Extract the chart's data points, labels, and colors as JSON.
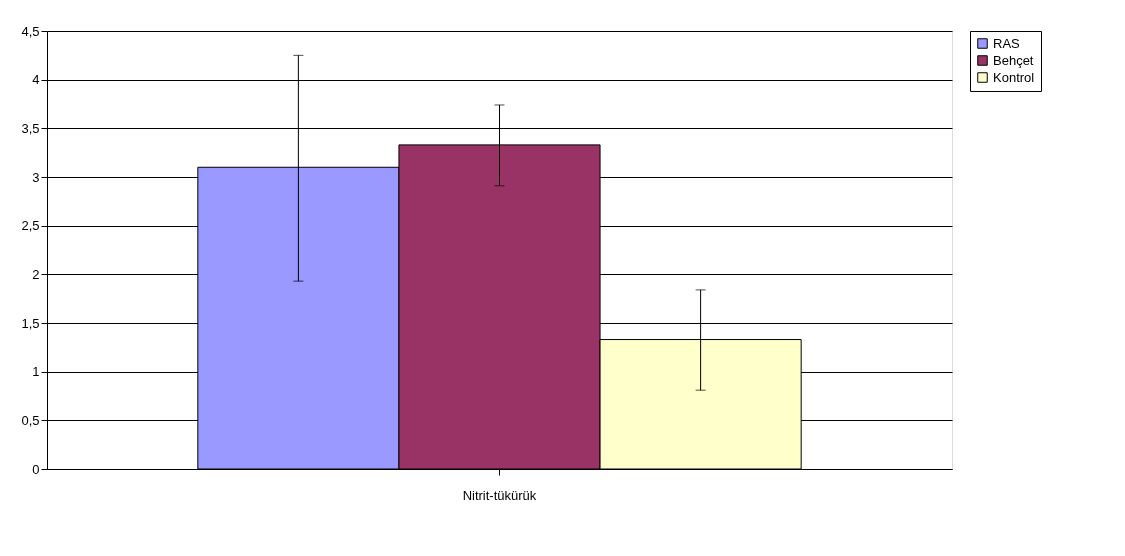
{
  "chart_data": {
    "type": "bar",
    "categories": [
      "Nitrit-tükürük"
    ],
    "series": [
      {
        "name": "RAS",
        "color": "#9999ff",
        "values": [
          3.1
        ],
        "errors": [
          [
            1.93,
            4.25
          ]
        ]
      },
      {
        "name": "Behçet",
        "color": "#993366",
        "values": [
          3.33
        ],
        "errors": [
          [
            2.91,
            3.74
          ]
        ]
      },
      {
        "name": "Kontrol",
        "color": "#ffffcc",
        "values": [
          1.33
        ],
        "errors": [
          [
            0.81,
            1.84
          ]
        ]
      }
    ],
    "ylim": [
      0,
      4.5
    ],
    "yticks": [
      0,
      {
        "value": 0.5,
        "label": "0,5"
      },
      1,
      {
        "value": 1.5,
        "label": "1,5"
      },
      2,
      {
        "value": 2.5,
        "label": "2,5"
      },
      3,
      {
        "value": 3.5,
        "label": "3,5"
      },
      4,
      {
        "value": 4.5,
        "label": "4,5"
      }
    ],
    "grid": "y",
    "legend": "right"
  }
}
